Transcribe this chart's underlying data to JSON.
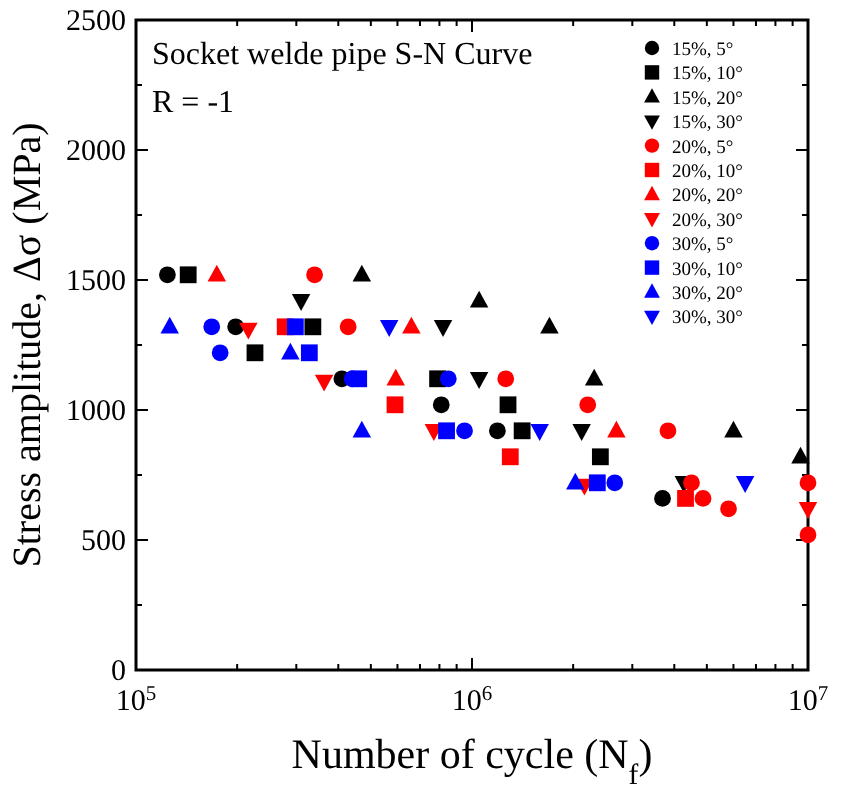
{
  "chart_data": {
    "type": "scatter",
    "xlabel": "Number of cycle (N$_{f}$)",
    "ylabel": "Stress amplitude, Δσ (MPa)",
    "log": "x",
    "grid": false,
    "legend": "top right",
    "annotations": [
      "Socket welde pipe S-N Curve",
      "R = -1"
    ],
    "xlim": [
      100000,
      10000000
    ],
    "xticks": [
      {
        "value": 100000,
        "label": "10$^{5}$"
      },
      {
        "value": 200000,
        "label": null
      },
      {
        "value": 300000,
        "label": null
      },
      {
        "value": 400000,
        "label": null
      },
      {
        "value": 500000,
        "label": null
      },
      {
        "value": 600000,
        "label": null
      },
      {
        "value": 700000,
        "label": null
      },
      {
        "value": 800000,
        "label": null
      },
      {
        "value": 900000,
        "label": null
      },
      {
        "value": 1000000,
        "label": "10$^{6}$"
      },
      {
        "value": 2000000,
        "label": null
      },
      {
        "value": 3000000,
        "label": null
      },
      {
        "value": 4000000,
        "label": null
      },
      {
        "value": 5000000,
        "label": null
      },
      {
        "value": 6000000,
        "label": null
      },
      {
        "value": 7000000,
        "label": null
      },
      {
        "value": 8000000,
        "label": null
      },
      {
        "value": 9000000,
        "label": null
      },
      {
        "value": 10000000,
        "label": "10$^{7}$"
      }
    ],
    "ylim": [
      0,
      2500
    ],
    "yticks": [
      0,
      {
        "value": 250,
        "label": null
      },
      500,
      {
        "value": 750,
        "label": null
      },
      1000,
      {
        "value": 1250,
        "label": null
      },
      1500,
      {
        "value": 1750,
        "label": null
      },
      2000,
      {
        "value": 2250,
        "label": null
      },
      2500
    ],
    "series": [
      {
        "name": "15%, 5°",
        "color": "#000000",
        "marker": "circle",
        "x": [
          124000,
          198000,
          410000,
          810000,
          1190000,
          3690000
        ],
        "values": [
          1520,
          1320,
          1120,
          1020,
          920,
          660
        ]
      },
      {
        "name": "15%, 10°",
        "color": "#000000",
        "marker": "square",
        "x": [
          143000,
          336000,
          226000,
          790000,
          1280000,
          1410000,
          2410000
        ],
        "values": [
          1520,
          1320,
          1220,
          1120,
          1020,
          920,
          820
        ]
      },
      {
        "name": "15%, 20°",
        "color": "#000000",
        "marker": "triangle",
        "x": [
          470000,
          1050000,
          1700000,
          2310000,
          6000000,
          9500000
        ],
        "values": [
          1520,
          1420,
          1320,
          1120,
          920,
          820
        ]
      },
      {
        "name": "15%, 30°",
        "color": "#000000",
        "marker": "triangle-down",
        "x": [
          310000,
          820000,
          1050000,
          2120000,
          4270000
        ],
        "values": [
          1420,
          1320,
          1120,
          920,
          720
        ]
      },
      {
        "name": "20%, 5°",
        "color": "#ff0000",
        "marker": "circle",
        "x": [
          340000,
          428000,
          1260000,
          2210000,
          3830000,
          4500000,
          4870000,
          5800000,
          10000000,
          10000000
        ],
        "values": [
          1520,
          1320,
          1120,
          1020,
          920,
          720,
          660,
          620,
          720,
          520
        ]
      },
      {
        "name": "20%, 10°",
        "color": "#ff0000",
        "marker": "square",
        "x": [
          278000,
          590000,
          1300000,
          4320000
        ],
        "values": [
          1320,
          1020,
          820,
          660
        ]
      },
      {
        "name": "20%, 20°",
        "color": "#ff0000",
        "marker": "triangle",
        "x": [
          174000,
          660000,
          593000,
          2690000
        ],
        "values": [
          1520,
          1320,
          1120,
          920
        ]
      },
      {
        "name": "20%, 30°",
        "color": "#ff0000",
        "marker": "triangle-down",
        "x": [
          216000,
          363000,
          770000,
          2160000,
          10000000
        ],
        "values": [
          1310,
          1110,
          920,
          710,
          620
        ]
      },
      {
        "name": "30%, 5°",
        "color": "#0000ff",
        "marker": "circle",
        "x": [
          168000,
          178000,
          440000,
          850000,
          950000,
          2660000
        ],
        "values": [
          1320,
          1220,
          1120,
          1120,
          920,
          720
        ]
      },
      {
        "name": "30%, 10°",
        "color": "#0000ff",
        "marker": "square",
        "x": [
          298000,
          328000,
          460000,
          840000,
          2360000
        ],
        "values": [
          1320,
          1220,
          1120,
          920,
          720
        ]
      },
      {
        "name": "30%, 20°",
        "color": "#0000ff",
        "marker": "triangle",
        "x": [
          126000,
          288000,
          470000,
          2030000
        ],
        "values": [
          1320,
          1220,
          920,
          720
        ]
      },
      {
        "name": "30%, 30°",
        "color": "#0000ff",
        "marker": "triangle-down",
        "x": [
          567000,
          1590000,
          6500000
        ],
        "values": [
          1320,
          920,
          720
        ]
      }
    ]
  }
}
